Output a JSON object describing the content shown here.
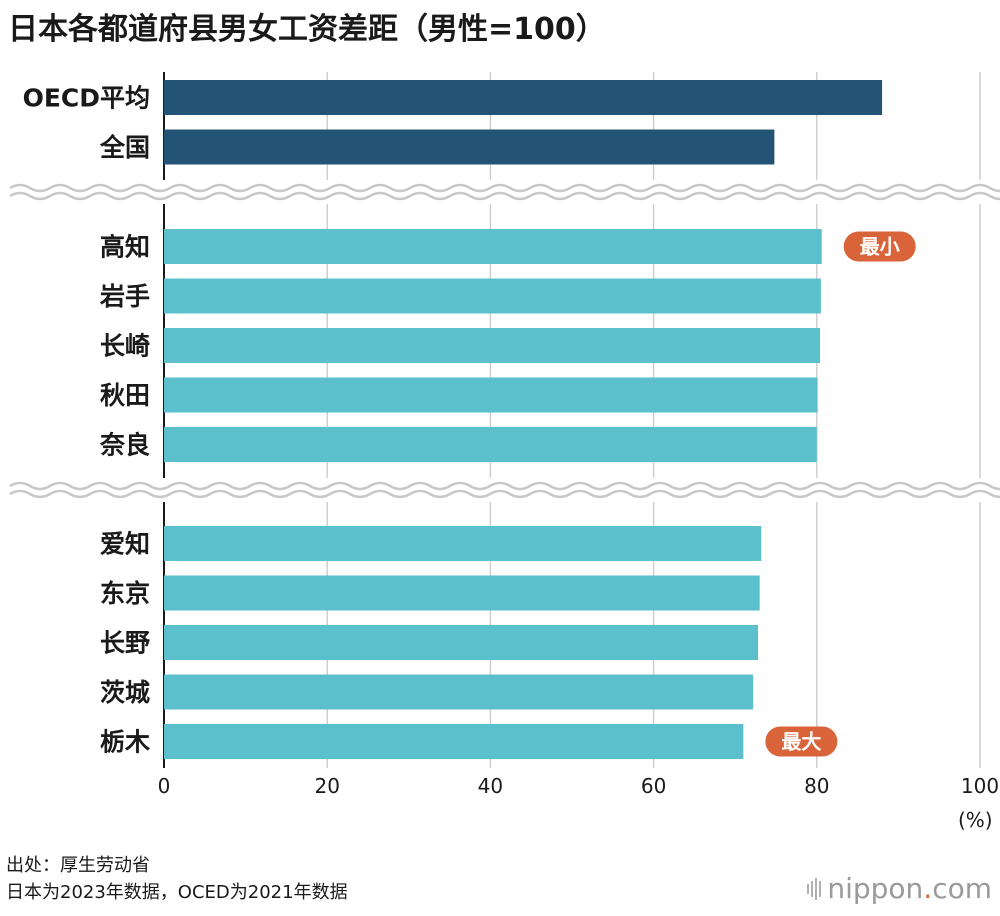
{
  "title": "日本各都道府县男女工资差距（男性=100）",
  "chart_data": {
    "type": "bar",
    "orientation": "horizontal",
    "title": "日本各都道府县男女工资差距（男性=100）",
    "xlim": [
      0,
      100
    ],
    "xticks": [
      0,
      20,
      40,
      60,
      80,
      100
    ],
    "xlabel": "(%)",
    "groups": [
      {
        "name": "summary",
        "color": "#245475",
        "bars": [
          {
            "label": "OECD平均",
            "value": 88.0
          },
          {
            "label": "全国",
            "value": 74.8
          }
        ]
      },
      {
        "name": "smallest-gap",
        "color": "#5bc0cb",
        "bars": [
          {
            "label": "高知",
            "value": 80.6
          },
          {
            "label": "岩手",
            "value": 80.5
          },
          {
            "label": "长崎",
            "value": 80.4
          },
          {
            "label": "秋田",
            "value": 80.1
          },
          {
            "label": "奈良",
            "value": 80.0
          }
        ]
      },
      {
        "name": "largest-gap",
        "color": "#5bc0cb",
        "bars": [
          {
            "label": "爱知",
            "value": 73.2
          },
          {
            "label": "东京",
            "value": 73.0
          },
          {
            "label": "长野",
            "value": 72.8
          },
          {
            "label": "茨城",
            "value": 72.2
          },
          {
            "label": "栃木",
            "value": 71.0
          }
        ]
      }
    ],
    "annotations": [
      {
        "target": "高知",
        "text": "最小",
        "color": "#d9643a"
      },
      {
        "target": "栃木",
        "text": "最大",
        "color": "#d9643a"
      }
    ]
  },
  "source": {
    "line1": "出处：厚生劳动省",
    "line2": "日本为2023年数据，OCED为2021年数据"
  },
  "brand": {
    "name": "nippon",
    "dot": ".",
    "suffix": "com"
  }
}
